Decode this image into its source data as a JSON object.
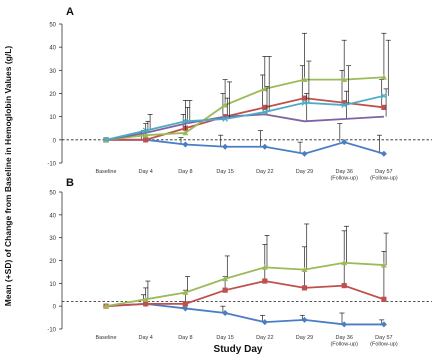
{
  "figure": {
    "ylabel": "Mean (+SD) of Change from Baseline in Hemoglobin Values (g/L)",
    "xlabel": "Study Day"
  },
  "chart_data": [
    {
      "type": "line",
      "panel_label": "A",
      "categories": [
        "Baseline",
        "Day 4",
        "Day 8",
        "Day 15",
        "Day 22",
        "Day 29",
        "Day 36 (Follow-up)",
        "Day 57 (Follow-up)"
      ],
      "category_lines": [
        [
          "Baseline"
        ],
        [
          "Day 4"
        ],
        [
          "Day 8"
        ],
        [
          "Day 15"
        ],
        [
          "Day 22"
        ],
        [
          "Day 29"
        ],
        [
          "Day 36",
          "(Follow-up)"
        ],
        [
          "Day 57",
          "(Follow-up)"
        ]
      ],
      "yticks": [
        -10,
        0,
        10,
        20,
        30,
        40,
        50
      ],
      "ylim": [
        -10,
        50
      ],
      "reference_line_y": 0,
      "grid": false,
      "series": [
        {
          "color": "#4a7ec4",
          "marker": "diamond",
          "values": [
            0,
            0,
            -2,
            -3,
            -3,
            -6,
            -1,
            -6
          ],
          "sd": [
            0,
            3,
            3,
            5,
            7,
            5,
            8,
            8
          ]
        },
        {
          "color": "#c0504d",
          "marker": "square",
          "values": [
            0,
            0,
            5,
            10,
            14,
            18,
            16,
            14
          ],
          "sd": [
            0,
            4,
            6,
            10,
            14,
            14,
            14,
            12
          ]
        },
        {
          "color": "#9bbb59",
          "marker": "triangle",
          "values": [
            0,
            2,
            3,
            15,
            22,
            26,
            26,
            27
          ],
          "sd": [
            0,
            5,
            14,
            11,
            14,
            20,
            17,
            19
          ]
        },
        {
          "color": "#8064a2",
          "marker": "none",
          "values": [
            0,
            3,
            7,
            10,
            11,
            8,
            9,
            10
          ],
          "sd": [
            0,
            5,
            7,
            8,
            12,
            12,
            12,
            12
          ]
        },
        {
          "color": "#4bacc6",
          "marker": "x",
          "values": [
            0,
            4,
            8,
            9,
            12,
            16,
            15,
            19
          ],
          "sd": [
            0,
            7,
            9,
            16,
            24,
            18,
            17,
            24
          ]
        }
      ]
    },
    {
      "type": "line",
      "panel_label": "B",
      "categories": [
        "Baseline",
        "Day 4",
        "Day 8",
        "Day 15",
        "Day 22",
        "Day 29",
        "Day 36 (Follow-up)",
        "Day 57 (Follow-up)"
      ],
      "category_lines": [
        [
          "Baseline"
        ],
        [
          "Day 4"
        ],
        [
          "Day 8"
        ],
        [
          "Day 15"
        ],
        [
          "Day 22"
        ],
        [
          "Day 29"
        ],
        [
          "Day 36",
          "(Follow-up)"
        ],
        [
          "Day 57",
          "(Follow-up)"
        ]
      ],
      "yticks": [
        -10,
        0,
        10,
        20,
        30,
        40,
        50
      ],
      "ylim": [
        -10,
        50
      ],
      "reference_line_y": 2,
      "grid": false,
      "series": [
        {
          "color": "#4a7ec4",
          "marker": "diamond",
          "values": [
            0,
            1,
            -1,
            -3,
            -7,
            -6,
            -8,
            -8
          ],
          "sd": [
            0,
            4,
            3,
            3,
            3,
            2,
            5,
            2
          ]
        },
        {
          "color": "#c0504d",
          "marker": "square",
          "values": [
            0,
            1,
            1,
            7,
            11,
            8,
            9,
            3
          ],
          "sd": [
            0,
            7,
            6,
            6,
            16,
            18,
            24,
            21
          ]
        },
        {
          "color": "#9bbb59",
          "marker": "triangle",
          "values": [
            0,
            3,
            6,
            12,
            17,
            16,
            19,
            18
          ],
          "sd": [
            0,
            8,
            7,
            10,
            14,
            20,
            16,
            14
          ]
        }
      ]
    }
  ]
}
